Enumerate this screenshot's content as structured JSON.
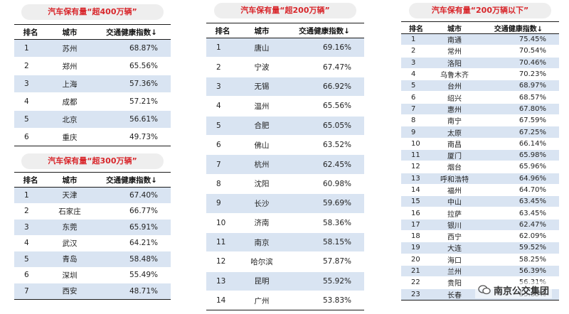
{
  "panels": [
    {
      "title": "汽车保有量“超400万辆”",
      "headers": [
        "排名",
        "城市",
        "交通健康指数↓"
      ],
      "rows": [
        [
          "1",
          "苏州",
          "68.87%"
        ],
        [
          "2",
          "郑州",
          "65.56%"
        ],
        [
          "3",
          "上海",
          "57.36%"
        ],
        [
          "4",
          "成都",
          "57.21%"
        ],
        [
          "5",
          "北京",
          "56.61%"
        ],
        [
          "6",
          "重庆",
          "49.73%"
        ]
      ]
    },
    {
      "title": "汽车保有量“超300万辆”",
      "headers": [
        "排名",
        "城市",
        "交通健康指数↓"
      ],
      "rows": [
        [
          "1",
          "天津",
          "67.40%"
        ],
        [
          "2",
          "石家庄",
          "66.77%"
        ],
        [
          "3",
          "东莞",
          "65.91%"
        ],
        [
          "4",
          "武汉",
          "64.21%"
        ],
        [
          "5",
          "青岛",
          "58.48%"
        ],
        [
          "6",
          "深圳",
          "55.49%"
        ],
        [
          "7",
          "西安",
          "48.71%"
        ]
      ]
    },
    {
      "title": "汽车保有量“超200万辆”",
      "headers": [
        "排名",
        "城市",
        "交通健康指数↓"
      ],
      "rows": [
        [
          "1",
          "唐山",
          "69.16%"
        ],
        [
          "2",
          "宁波",
          "67.47%"
        ],
        [
          "3",
          "无锡",
          "66.92%"
        ],
        [
          "4",
          "温州",
          "65.56%"
        ],
        [
          "5",
          "合肥",
          "65.05%"
        ],
        [
          "6",
          "佛山",
          "63.52%"
        ],
        [
          "7",
          "杭州",
          "62.45%"
        ],
        [
          "8",
          "沈阳",
          "60.98%"
        ],
        [
          "9",
          "长沙",
          "59.69%"
        ],
        [
          "10",
          "济南",
          "58.36%"
        ],
        [
          "11",
          "南京",
          "58.15%"
        ],
        [
          "12",
          "哈尔滨",
          "57.87%"
        ],
        [
          "13",
          "昆明",
          "55.92%"
        ],
        [
          "14",
          "广州",
          "53.83%"
        ]
      ]
    },
    {
      "title": "汽车保有量“200万辆以下”",
      "headers": [
        "排名",
        "城市",
        "交通健康指数↓"
      ],
      "rows": [
        [
          "1",
          "南通",
          "75.45%"
        ],
        [
          "2",
          "常州",
          "70.54%"
        ],
        [
          "3",
          "洛阳",
          "70.46%"
        ],
        [
          "4",
          "乌鲁木齐",
          "70.23%"
        ],
        [
          "5",
          "台州",
          "68.97%"
        ],
        [
          "6",
          "绍兴",
          "68.57%"
        ],
        [
          "7",
          "惠州",
          "67.80%"
        ],
        [
          "8",
          "南宁",
          "67.59%"
        ],
        [
          "9",
          "太原",
          "67.25%"
        ],
        [
          "10",
          "南昌",
          "66.14%"
        ],
        [
          "11",
          "厦门",
          "65.98%"
        ],
        [
          "12",
          "烟台",
          "65.96%"
        ],
        [
          "13",
          "呼和浩特",
          "64.96%"
        ],
        [
          "14",
          "福州",
          "64.70%"
        ],
        [
          "15",
          "中山",
          "63.45%"
        ],
        [
          "16",
          "拉萨",
          "63.45%"
        ],
        [
          "17",
          "银川",
          "62.47%"
        ],
        [
          "18",
          "西宁",
          "62.09%"
        ],
        [
          "19",
          "大连",
          "59.52%"
        ],
        [
          "20",
          "海口",
          "58.25%"
        ],
        [
          "21",
          "兰州",
          "56.39%"
        ],
        [
          "22",
          "贵阳",
          "56.31%"
        ],
        [
          "23",
          "长春",
          "55.85%"
        ]
      ]
    }
  ],
  "watermark": {
    "text": "南京公交集团",
    "icon": "wechat-icon"
  }
}
